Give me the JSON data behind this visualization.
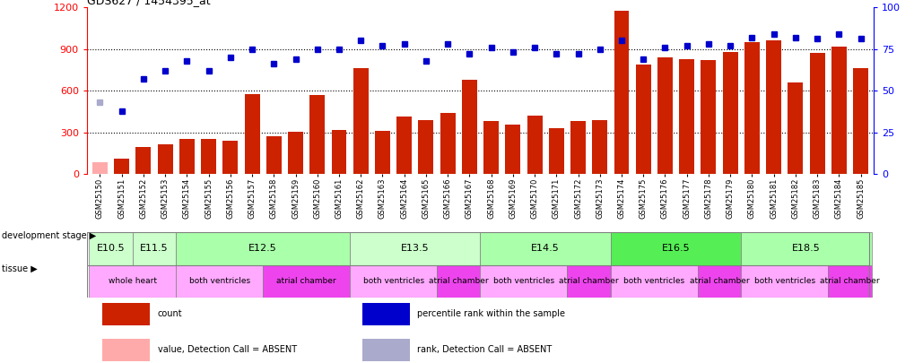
{
  "title": "GDS627 / 1454395_at",
  "samples": [
    "GSM25150",
    "GSM25151",
    "GSM25152",
    "GSM25153",
    "GSM25154",
    "GSM25155",
    "GSM25156",
    "GSM25157",
    "GSM25158",
    "GSM25159",
    "GSM25160",
    "GSM25161",
    "GSM25162",
    "GSM25163",
    "GSM25164",
    "GSM25165",
    "GSM25166",
    "GSM25167",
    "GSM25168",
    "GSM25169",
    "GSM25170",
    "GSM25171",
    "GSM25172",
    "GSM25173",
    "GSM25174",
    "GSM25175",
    "GSM25176",
    "GSM25177",
    "GSM25178",
    "GSM25179",
    "GSM25180",
    "GSM25181",
    "GSM25182",
    "GSM25183",
    "GSM25184",
    "GSM25185"
  ],
  "counts": [
    85,
    110,
    195,
    215,
    255,
    255,
    240,
    575,
    270,
    305,
    570,
    320,
    760,
    310,
    415,
    390,
    440,
    680,
    380,
    360,
    420,
    330,
    380,
    390,
    1175,
    790,
    840,
    830,
    820,
    880,
    950,
    960,
    660,
    870,
    920,
    760
  ],
  "percentile_ranks": [
    null,
    38,
    57,
    62,
    68,
    62,
    70,
    75,
    66,
    69,
    75,
    75,
    80,
    77,
    78,
    68,
    78,
    72,
    76,
    73,
    76,
    72,
    72,
    75,
    80,
    69,
    76,
    77,
    78,
    77,
    82,
    84,
    82,
    81,
    84,
    81
  ],
  "absent_value_indices": [
    0
  ],
  "absent_rank_indices": [
    0
  ],
  "ylim_left": [
    0,
    1200
  ],
  "ylim_right": [
    0,
    100
  ],
  "yticks_left": [
    0,
    300,
    600,
    900,
    1200
  ],
  "yticks_right": [
    0,
    25,
    50,
    75,
    100
  ],
  "bar_color": "#cc2200",
  "absent_bar_color": "#ffaaaa",
  "dot_color": "#0000cc",
  "absent_dot_color": "#aaaacc",
  "development_stages": [
    {
      "label": "E10.5",
      "start": 0,
      "end": 1,
      "color": "#ccffcc"
    },
    {
      "label": "E11.5",
      "start": 2,
      "end": 3,
      "color": "#ccffcc"
    },
    {
      "label": "E12.5",
      "start": 4,
      "end": 11,
      "color": "#aaffaa"
    },
    {
      "label": "E13.5",
      "start": 12,
      "end": 17,
      "color": "#ccffcc"
    },
    {
      "label": "E14.5",
      "start": 18,
      "end": 23,
      "color": "#aaffaa"
    },
    {
      "label": "E16.5",
      "start": 24,
      "end": 29,
      "color": "#55ee55"
    },
    {
      "label": "E18.5",
      "start": 30,
      "end": 35,
      "color": "#aaffaa"
    }
  ],
  "tissues": [
    {
      "label": "whole heart",
      "start": 0,
      "end": 3,
      "color": "#ffaaff"
    },
    {
      "label": "both ventricles",
      "start": 4,
      "end": 7,
      "color": "#ffaaff"
    },
    {
      "label": "atrial chamber",
      "start": 8,
      "end": 11,
      "color": "#ee44ee"
    },
    {
      "label": "both ventricles",
      "start": 12,
      "end": 15,
      "color": "#ffaaff"
    },
    {
      "label": "atrial chamber",
      "start": 16,
      "end": 17,
      "color": "#ee44ee"
    },
    {
      "label": "both ventricles",
      "start": 18,
      "end": 21,
      "color": "#ffaaff"
    },
    {
      "label": "atrial chamber",
      "start": 22,
      "end": 23,
      "color": "#ee44ee"
    },
    {
      "label": "both ventricles",
      "start": 24,
      "end": 27,
      "color": "#ffaaff"
    },
    {
      "label": "atrial chamber",
      "start": 28,
      "end": 29,
      "color": "#ee44ee"
    },
    {
      "label": "both ventricles",
      "start": 30,
      "end": 33,
      "color": "#ffaaff"
    },
    {
      "label": "atrial chamber",
      "start": 34,
      "end": 35,
      "color": "#ee44ee"
    }
  ],
  "legend_items": [
    {
      "label": "count",
      "color": "#cc2200"
    },
    {
      "label": "percentile rank within the sample",
      "color": "#0000cc"
    },
    {
      "label": "value, Detection Call = ABSENT",
      "color": "#ffaaaa"
    },
    {
      "label": "rank, Detection Call = ABSENT",
      "color": "#aaaacc"
    }
  ],
  "absent_rank_value": 43
}
